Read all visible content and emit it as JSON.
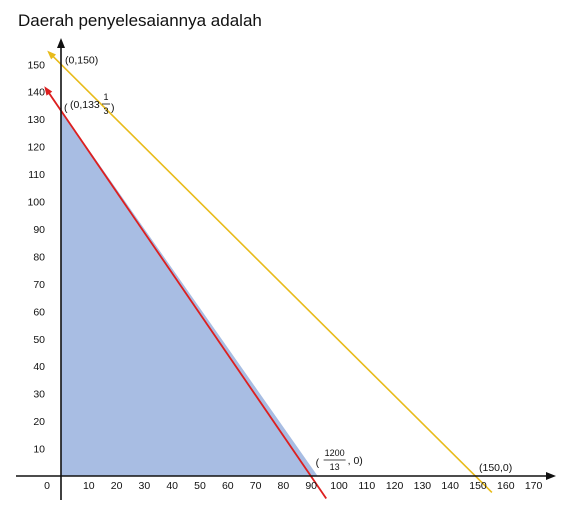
{
  "chart_data": {
    "type": "area",
    "title": "Daerah penyelesaiannya adalah",
    "xlabel": "",
    "ylabel": "",
    "xlim": [
      0,
      170
    ],
    "ylim": [
      0,
      150
    ],
    "x_ticks": [
      0,
      10,
      20,
      30,
      40,
      50,
      60,
      70,
      80,
      90,
      100,
      110,
      120,
      130,
      140,
      150,
      160,
      170
    ],
    "y_ticks": [
      10,
      20,
      30,
      40,
      50,
      60,
      70,
      80,
      90,
      100,
      110,
      120,
      130,
      140,
      150
    ],
    "grid": false,
    "colors": {
      "region": "#a8bde3",
      "red_line": "#dd1f1f",
      "yellow_line": "#e8bb1a",
      "axis": "#111111"
    },
    "region": {
      "name": "Daerah penyelesaian",
      "vertices": [
        [
          0,
          0
        ],
        [
          0,
          133.333
        ],
        [
          92.308,
          0
        ]
      ]
    },
    "lines": [
      {
        "color_key": "red_line",
        "start": [
          -5.4,
          141.1
        ],
        "end": [
          95.4,
          -8.2
        ]
      },
      {
        "color_key": "yellow_line",
        "start": [
          -4.2,
          154.2
        ],
        "end": [
          155.0,
          -6.0
        ]
      }
    ],
    "annotations": {
      "top_yellow": {
        "text": "(0,150)",
        "x": 0,
        "y": 150
      },
      "top_red": {
        "prefix": "(0,133",
        "num": "1",
        "den": "3",
        "suffix": ")",
        "x": 0,
        "y": 133.333
      },
      "bottom_red": {
        "prefix": "(",
        "num": "1200",
        "den": "13",
        "suffix": ", 0)",
        "x": 92.308,
        "y": 0
      },
      "bottom_yellow": {
        "text": "(150,0)",
        "x": 150,
        "y": 0
      }
    }
  }
}
